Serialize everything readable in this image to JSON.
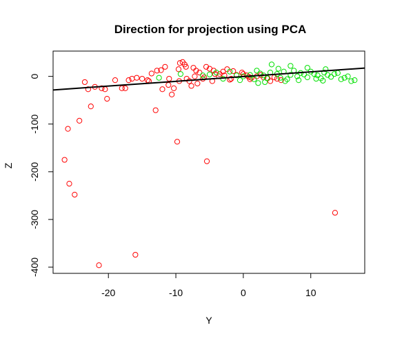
{
  "chart_data": {
    "type": "scatter",
    "title": "Direction for projection using PCA",
    "xlabel": "Y",
    "ylabel": "Z",
    "xlim": [
      -28.2,
      18
    ],
    "ylim": [
      -413,
      53
    ],
    "xticks": [
      -20,
      -10,
      0,
      10
    ],
    "yticks": [
      0,
      -100,
      -200,
      -300,
      -400
    ],
    "colors": {
      "red": "#ff0000",
      "green": "#00e000",
      "line": "#000000"
    },
    "projection_line": {
      "x": [
        -28.2,
        18
      ],
      "y": [
        -28.5,
        17.4
      ]
    },
    "series": [
      {
        "color": "red",
        "points": [
          [
            -26.5,
            -175
          ],
          [
            -26,
            -110
          ],
          [
            -25.8,
            -225
          ],
          [
            -25,
            -248
          ],
          [
            -24.3,
            -93
          ],
          [
            -22.6,
            -63
          ],
          [
            -21.4,
            -396
          ],
          [
            -16,
            -374
          ],
          [
            -13,
            -71
          ],
          [
            -9.8,
            -137
          ],
          [
            -5.4,
            -178
          ],
          [
            13.6,
            -286
          ],
          [
            -20.2,
            -47
          ],
          [
            -23,
            -27
          ],
          [
            -22,
            -22
          ],
          [
            -21,
            -25
          ],
          [
            -20.5,
            -27
          ],
          [
            -19,
            -8
          ],
          [
            -18,
            -25
          ],
          [
            -17.5,
            -25
          ],
          [
            -16.5,
            -5
          ],
          [
            -15.8,
            -3
          ],
          [
            -15,
            -5
          ],
          [
            -14.2,
            -8
          ],
          [
            -13.6,
            6
          ],
          [
            -12.8,
            12
          ],
          [
            -12.2,
            13
          ],
          [
            -11.6,
            20
          ],
          [
            -11.1,
            -18
          ],
          [
            -10.6,
            -38
          ],
          [
            -10.3,
            -25
          ],
          [
            -9.6,
            15
          ],
          [
            -9.4,
            28
          ],
          [
            -9,
            30
          ],
          [
            -8.7,
            25
          ],
          [
            -8.4,
            -5
          ],
          [
            -8,
            -10
          ],
          [
            -7.7,
            -20
          ],
          [
            -7.4,
            18
          ],
          [
            -7,
            12
          ],
          [
            -6.5,
            8
          ],
          [
            -6,
            -5
          ],
          [
            -5.5,
            20
          ],
          [
            -5,
            16
          ],
          [
            -4.6,
            -10
          ],
          [
            -4.2,
            5
          ],
          [
            -3.6,
            0
          ],
          [
            -3,
            10
          ],
          [
            -2.4,
            15
          ],
          [
            -1.8,
            -5
          ],
          [
            -1,
            3
          ],
          [
            -0.2,
            8
          ],
          [
            0.5,
            2
          ],
          [
            1.2,
            -3
          ],
          [
            2,
            0
          ],
          [
            3,
            -2
          ],
          [
            4,
            -10
          ],
          [
            5,
            -5
          ],
          [
            5.6,
            -8
          ],
          [
            -17,
            -8
          ],
          [
            -14,
            -10
          ],
          [
            -12,
            -27
          ],
          [
            -23.5,
            -12
          ],
          [
            -11,
            -5
          ],
          [
            -5.8,
            -2
          ],
          [
            -4.4,
            12
          ],
          [
            -3.5,
            5
          ],
          [
            -2,
            -7
          ],
          [
            -1.5,
            11
          ],
          [
            0,
            5
          ],
          [
            1,
            -6
          ],
          [
            2.6,
            3
          ],
          [
            3.6,
            -4
          ],
          [
            4.6,
            -2
          ],
          [
            -6.8,
            -15
          ],
          [
            -9.5,
            -10
          ],
          [
            -8.5,
            20
          ],
          [
            -7.2,
            0
          ],
          [
            -2.8,
            2
          ],
          [
            0.8,
            -1
          ]
        ]
      },
      {
        "color": "green",
        "points": [
          [
            -12.5,
            -3
          ],
          [
            -9.3,
            5
          ],
          [
            -6,
            2
          ],
          [
            -5,
            4
          ],
          [
            -4,
            8
          ],
          [
            -3,
            -5
          ],
          [
            -2,
            10
          ],
          [
            -1,
            2
          ],
          [
            0,
            0
          ],
          [
            1,
            3
          ],
          [
            2,
            12
          ],
          [
            2.5,
            6
          ],
          [
            3,
            2
          ],
          [
            3.5,
            -4
          ],
          [
            4,
            8
          ],
          [
            5,
            5
          ],
          [
            5.5,
            -3
          ],
          [
            6,
            10
          ],
          [
            6.5,
            -6
          ],
          [
            7,
            3
          ],
          [
            7.5,
            12
          ],
          [
            8,
            0
          ],
          [
            8.5,
            7
          ],
          [
            9,
            4
          ],
          [
            9.5,
            -2
          ],
          [
            10,
            10
          ],
          [
            10.5,
            5
          ],
          [
            11,
            2
          ],
          [
            11.5,
            -4
          ],
          [
            12,
            8
          ],
          [
            12.5,
            3
          ],
          [
            13,
            -1
          ],
          [
            13.5,
            5
          ],
          [
            14,
            7
          ],
          [
            15,
            -3
          ],
          [
            15.5,
            0
          ],
          [
            16,
            -10
          ],
          [
            16.5,
            -8
          ],
          [
            4.2,
            25
          ],
          [
            7,
            22
          ],
          [
            9.5,
            18
          ],
          [
            12.2,
            15
          ],
          [
            3.2,
            -12
          ],
          [
            6.2,
            -10
          ],
          [
            8.2,
            -8
          ],
          [
            10.8,
            -5
          ],
          [
            1.6,
            -6
          ],
          [
            -0.5,
            -8
          ],
          [
            2.2,
            -14
          ],
          [
            5.2,
            16
          ],
          [
            11.8,
            -9
          ],
          [
            14.5,
            -6
          ]
        ]
      }
    ]
  }
}
